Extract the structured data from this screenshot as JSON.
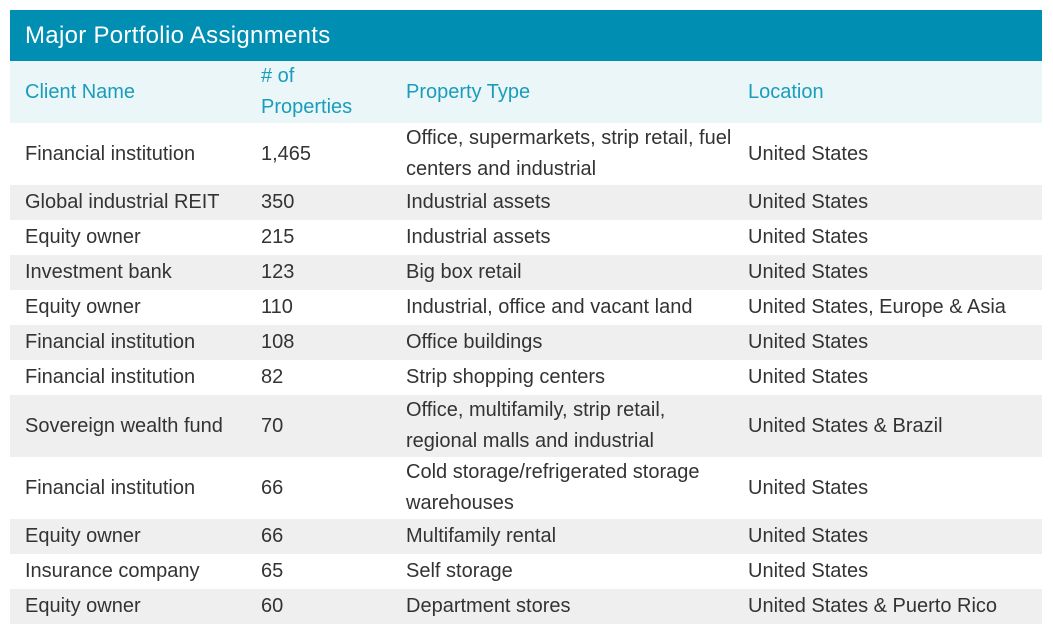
{
  "title": "Major Portfolio Assignments",
  "columns": {
    "client": "Client Name",
    "count": "# of Properties",
    "type": "Property Type",
    "location": "Location"
  },
  "rows": [
    {
      "client": "Financial institution",
      "count": "1,465",
      "type": "Office, supermarkets, strip retail, fuel centers and industrial",
      "location": "United States"
    },
    {
      "client": "Global industrial REIT",
      "count": "350",
      "type": "Industrial assets",
      "location": "United States"
    },
    {
      "client": "Equity owner",
      "count": "215",
      "type": "Industrial assets",
      "location": "United States"
    },
    {
      "client": "Investment bank",
      "count": "123",
      "type": "Big box retail",
      "location": "United States"
    },
    {
      "client": "Equity owner",
      "count": "110",
      "type": "Industrial, office and vacant land",
      "location": "United States, Europe & Asia"
    },
    {
      "client": "Financial institution",
      "count": "108",
      "type": "Office buildings",
      "location": "United States"
    },
    {
      "client": "Financial institution",
      "count": "82",
      "type": "Strip shopping centers",
      "location": "United States"
    },
    {
      "client": "Sovereign wealth fund",
      "count": "70",
      "type": "Office, multifamily, strip retail, regional malls and industrial",
      "location": "United States & Brazil"
    },
    {
      "client": "Financial institution",
      "count": "66",
      "type": "Cold storage/refrigerated storage warehouses",
      "location": "United States"
    },
    {
      "client": "Equity owner",
      "count": "66",
      "type": "Multifamily rental",
      "location": "United States"
    },
    {
      "client": "Insurance company",
      "count": "65",
      "type": "Self storage",
      "location": "United States"
    },
    {
      "client": "Equity owner",
      "count": "60",
      "type": "Department stores",
      "location": "United States & Puerto Rico"
    }
  ]
}
